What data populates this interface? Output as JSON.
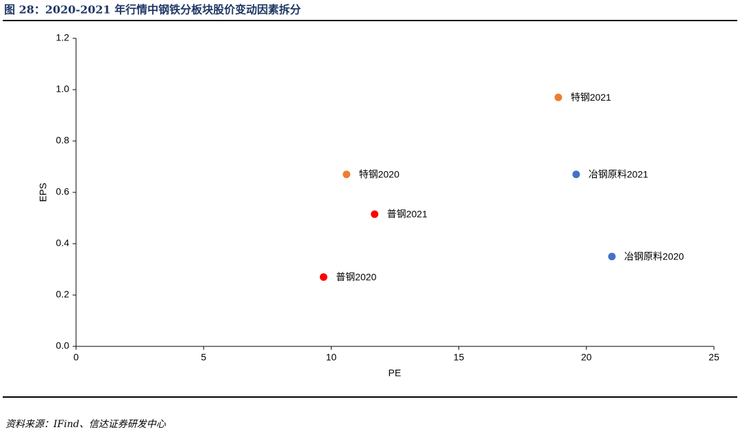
{
  "chart_data": {
    "type": "scatter",
    "title": "图 28：2020-2021 年行情中钢铁分板块股价变动因素拆分",
    "x_label": "PE",
    "y_label": "EPS",
    "labels": [
      "特钢2021",
      "特钢2020",
      "冶钢原料2021",
      "普钢2021",
      "冶钢原料2020",
      "普钢2020"
    ],
    "x": [
      18.9,
      10.6,
      19.6,
      11.7,
      21.0,
      9.7
    ],
    "y": [
      0.97,
      0.67,
      0.67,
      0.515,
      0.35,
      0.27
    ],
    "colors": [
      "#ed7d31",
      "#ed7d31",
      "#4472c4",
      "#ff0000",
      "#4472c4",
      "#ff0000"
    ],
    "xlim": [
      0,
      25
    ],
    "xticks": [
      0,
      5,
      10,
      15,
      20,
      25
    ],
    "ylim": [
      0,
      1.2
    ],
    "yticks": [
      {
        "value": 0,
        "label": "0.0"
      },
      {
        "value": 0.2,
        "label": "0.2"
      },
      {
        "value": 0.4,
        "label": "0.4"
      },
      {
        "value": 0.6,
        "label": "0.6"
      },
      {
        "value": 0.8,
        "label": "0.8"
      },
      {
        "value": 1.0,
        "label": "1.0"
      },
      {
        "value": 1.2,
        "label": "1.2"
      }
    ],
    "grid": false
  },
  "source": "资料来源：IFind、信达证券研发中心"
}
